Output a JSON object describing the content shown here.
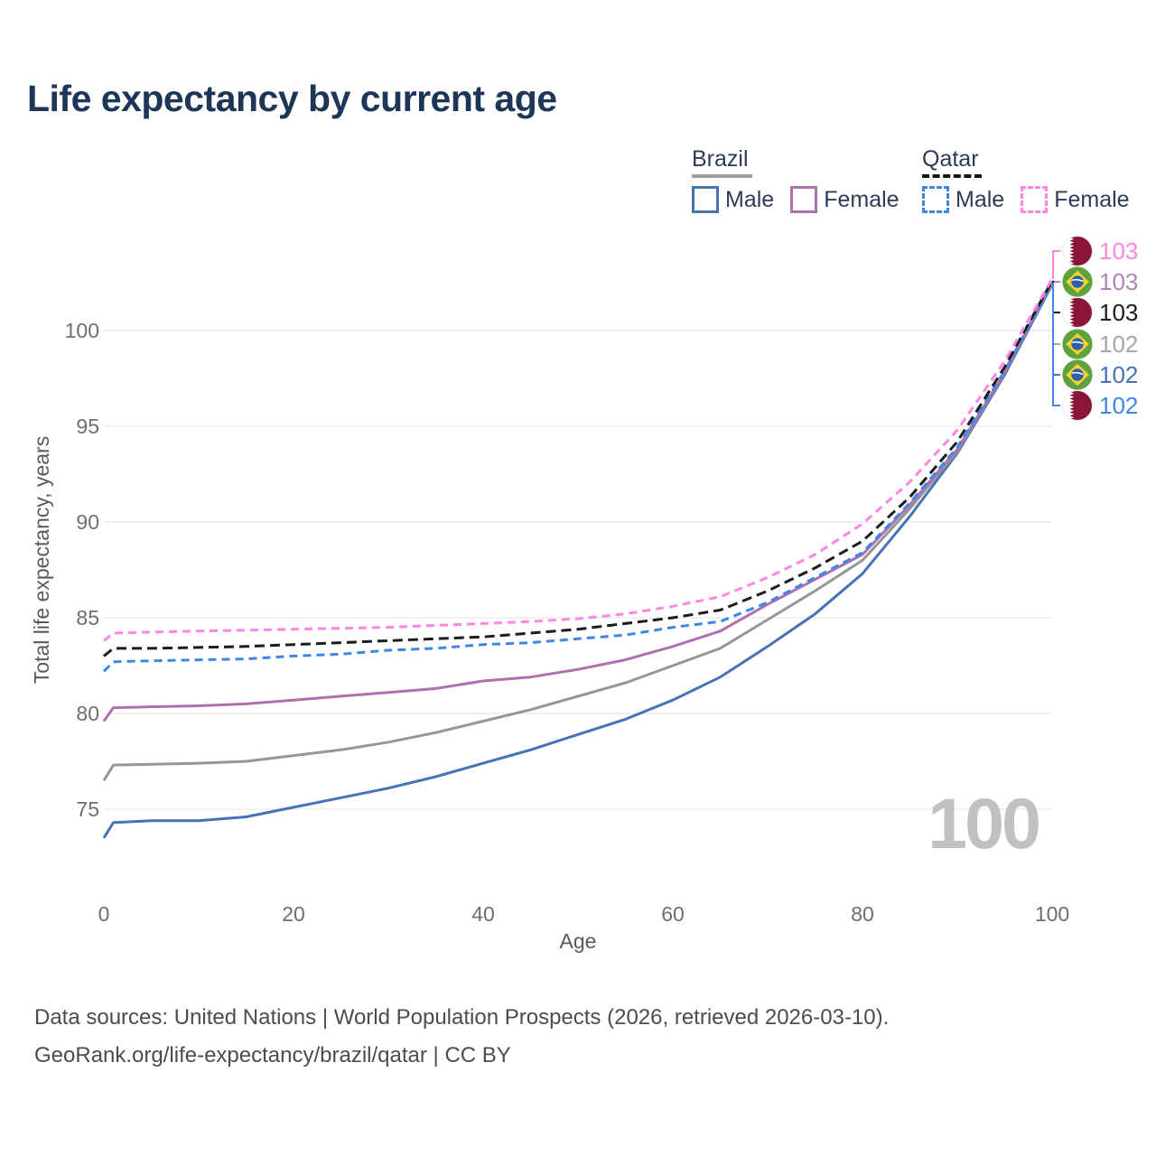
{
  "title": "Life expectancy by current age",
  "legend": {
    "groups": [
      {
        "name": "Brazil",
        "line_style": "solid",
        "underline_color": "#a0a0a0",
        "items": [
          {
            "label": "Male",
            "color": "#4673b8",
            "dashed": false
          },
          {
            "label": "Female",
            "color": "#b06fb0",
            "dashed": false
          }
        ]
      },
      {
        "name": "Qatar",
        "line_style": "dashed",
        "underline_color": "#151515",
        "items": [
          {
            "label": "Male",
            "color": "#3f87e6",
            "dashed": true
          },
          {
            "label": "Female",
            "color": "#ff85e2",
            "dashed": true
          }
        ]
      }
    ]
  },
  "chart_data": {
    "type": "line",
    "title": "Life expectancy by current age",
    "xlabel": "Age",
    "ylabel": "Total life expectancy, years",
    "xticks": [
      0,
      20,
      40,
      60,
      80,
      100
    ],
    "yticks": [
      75,
      80,
      85,
      90,
      95,
      100
    ],
    "xlim": [
      0,
      100
    ],
    "ylim": [
      73,
      103.5
    ],
    "grid": "horizontal",
    "legend_position": "top-right",
    "x": [
      0,
      1,
      5,
      10,
      15,
      20,
      25,
      30,
      35,
      40,
      45,
      50,
      55,
      60,
      65,
      70,
      75,
      80,
      85,
      90,
      95,
      100
    ],
    "series": [
      {
        "name": "Brazil Male",
        "country": "Brazil",
        "sex": "Male",
        "color": "#4673b8",
        "dashed": false,
        "values": [
          73.5,
          74.3,
          74.4,
          74.4,
          74.6,
          75.1,
          75.6,
          76.1,
          76.7,
          77.4,
          78.1,
          78.9,
          79.7,
          80.7,
          81.9,
          83.5,
          85.2,
          87.3,
          90.3,
          93.6,
          97.7,
          102.4
        ]
      },
      {
        "name": "Brazil Both sexes",
        "country": "Brazil",
        "sex": "Both",
        "color": "#969696",
        "dashed": false,
        "values": [
          76.5,
          77.3,
          77.35,
          77.4,
          77.5,
          77.8,
          78.1,
          78.5,
          79.0,
          79.6,
          80.2,
          80.9,
          81.6,
          82.5,
          83.4,
          84.9,
          86.4,
          88.0,
          90.7,
          93.7,
          97.8,
          102.5
        ]
      },
      {
        "name": "Brazil Female",
        "country": "Brazil",
        "sex": "Female",
        "color": "#b06fb0",
        "dashed": false,
        "values": [
          79.6,
          80.3,
          80.35,
          80.4,
          80.5,
          80.7,
          80.9,
          81.1,
          81.3,
          81.7,
          81.9,
          82.3,
          82.8,
          83.5,
          84.3,
          85.7,
          87.0,
          88.3,
          90.9,
          93.8,
          97.8,
          102.6
        ]
      },
      {
        "name": "Qatar Male",
        "country": "Qatar",
        "sex": "Male",
        "color": "#3f87e6",
        "dashed": true,
        "values": [
          82.2,
          82.7,
          82.75,
          82.8,
          82.85,
          83.0,
          83.1,
          83.3,
          83.4,
          83.6,
          83.7,
          83.9,
          84.1,
          84.5,
          84.8,
          85.8,
          87.1,
          88.4,
          91.0,
          93.9,
          97.9,
          102.5
        ]
      },
      {
        "name": "Qatar Both sexes",
        "country": "Qatar",
        "sex": "Both",
        "color": "#1c1c1c",
        "dashed": true,
        "values": [
          83.0,
          83.4,
          83.4,
          83.45,
          83.5,
          83.6,
          83.7,
          83.8,
          83.9,
          84.0,
          84.2,
          84.4,
          84.7,
          85.0,
          85.4,
          86.4,
          87.6,
          89.0,
          91.3,
          94.2,
          98.1,
          102.6
        ]
      },
      {
        "name": "Qatar Female",
        "country": "Qatar",
        "sex": "Female",
        "color": "#ff85e2",
        "dashed": true,
        "values": [
          83.8,
          84.2,
          84.25,
          84.3,
          84.35,
          84.4,
          84.45,
          84.5,
          84.6,
          84.7,
          84.8,
          84.95,
          85.2,
          85.6,
          86.1,
          87.1,
          88.3,
          89.9,
          92.1,
          94.8,
          98.4,
          102.7
        ]
      }
    ],
    "end_labels": [
      {
        "value": "103",
        "flag": "qatar",
        "series": "Qatar Female",
        "color": "#ff85e2"
      },
      {
        "value": "103",
        "flag": "brazil",
        "series": "Brazil Female",
        "color": "#b283b5"
      },
      {
        "value": "103",
        "flag": "qatar",
        "series": "Qatar Both sexes",
        "color": "#1c1c1c"
      },
      {
        "value": "102",
        "flag": "brazil",
        "series": "Brazil Both sexes",
        "color": "#a6a6a6"
      },
      {
        "value": "102",
        "flag": "brazil",
        "series": "Brazil Male",
        "color": "#4673b8"
      },
      {
        "value": "102",
        "flag": "qatar",
        "series": "Qatar Male",
        "color": "#3f87e6"
      }
    ],
    "watermark": "100"
  },
  "footer": {
    "line1": "Data sources: United Nations | World Population Prospects (2026, retrieved 2026-03-10).",
    "line2": "GeoRank.org/life-expectancy/brazil/qatar | CC BY"
  },
  "colors": {
    "title": "#1d3557",
    "grid": "#ececec",
    "tick_text": "#6e6e6e",
    "axis_title": "#5a5a5a",
    "watermark": "#c1c1c1",
    "qatar_flag_maroon": "#8a1538",
    "brazil_flag_green": "#5ea13e",
    "brazil_flag_yellow": "#f6d330",
    "brazil_flag_blue": "#2d5faa"
  }
}
